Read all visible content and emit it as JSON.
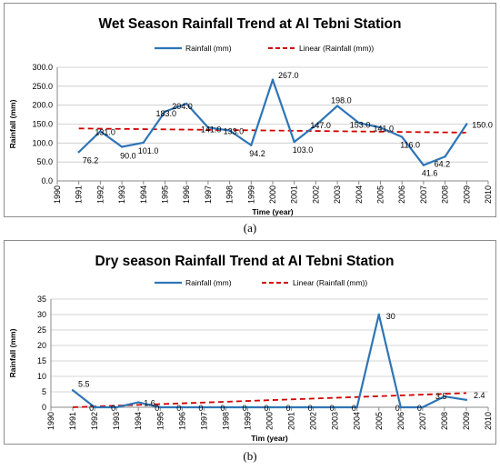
{
  "captions": [
    "(a)",
    "(b)"
  ],
  "chart_data": [
    {
      "type": "line",
      "title": "Wet Season Rainfall Trend at Al Tebni Station",
      "xlabel": "Time (year)",
      "ylabel": "Rainfall (mm)",
      "x_ticks": [
        "1990",
        "1991",
        "1992",
        "1993",
        "1994",
        "1995",
        "1996",
        "1997",
        "1998",
        "1999",
        "2000",
        "2001",
        "2002",
        "2003",
        "2004",
        "2005",
        "2006",
        "2007",
        "2008",
        "2009",
        "2010"
      ],
      "y_ticks": [
        "0.0",
        "50.0",
        "100.0",
        "150.0",
        "200.0",
        "250.0",
        "300.0"
      ],
      "xlim": [
        1990,
        2010
      ],
      "ylim": [
        0,
        300
      ],
      "grid": "horizontal",
      "legend_position": "top",
      "series": [
        {
          "name": "Rainfall (mm)",
          "color": "#2e75b6",
          "style": "solid",
          "x": [
            1991,
            1992,
            1993,
            1994,
            1995,
            1996,
            1997,
            1998,
            1999,
            2000,
            2001,
            2002,
            2003,
            2004,
            2005,
            2006,
            2007,
            2008,
            2009
          ],
          "values": [
            76.2,
            131.0,
            90.0,
            101.0,
            183.0,
            204.0,
            141.0,
            133.0,
            94.2,
            267.0,
            103.0,
            147.0,
            198.0,
            153.0,
            141.0,
            116.0,
            41.6,
            64.2,
            150.0
          ]
        },
        {
          "name": "Linear (Rainfall (mm))",
          "color": "#d00000",
          "style": "dashed",
          "x": [
            1991,
            2009
          ],
          "values": [
            138.5,
            127.5
          ]
        }
      ],
      "data_labels": [
        "76.2",
        "131.0",
        "90.0",
        "101.0",
        "183.0",
        "204.0",
        "141.0",
        "133.0",
        "94.2",
        "267.0",
        "103.0",
        "147.0",
        "198.0",
        "153.0",
        "141.0",
        "116.0",
        "41.6",
        "64.2",
        "150.0"
      ]
    },
    {
      "type": "line",
      "title": "Dry season Rainfall Trend at Al Tebni Station",
      "xlabel": "Tim (year)",
      "ylabel": "Rainfall (mm)",
      "x_ticks": [
        "1990",
        "1991",
        "1992",
        "1993",
        "1994",
        "1995",
        "1996",
        "1997",
        "1998",
        "1999",
        "2000",
        "2001",
        "2002",
        "2003",
        "2004",
        "2005",
        "2006",
        "2007",
        "2008",
        "2009",
        "2010"
      ],
      "y_ticks": [
        "0",
        "5",
        "10",
        "15",
        "20",
        "25",
        "30",
        "35"
      ],
      "xlim": [
        1990,
        2010
      ],
      "ylim": [
        0,
        35
      ],
      "grid": "horizontal",
      "legend_position": "top",
      "series": [
        {
          "name": "Rainfall (mm)",
          "color": "#2e75b6",
          "style": "solid",
          "x": [
            1991,
            1992,
            1993,
            1994,
            1995,
            1996,
            1997,
            1998,
            1999,
            2000,
            2001,
            2002,
            2003,
            2004,
            2005,
            2006,
            2007,
            2008,
            2009
          ],
          "values": [
            5.5,
            0,
            0,
            1.6,
            0,
            0,
            0,
            0,
            0,
            0,
            0,
            0,
            0,
            0,
            30,
            0,
            0,
            3.5,
            2.4
          ]
        },
        {
          "name": "Linear (Rainfall (mm))",
          "color": "#d00000",
          "style": "dashed",
          "x": [
            1991,
            2009
          ],
          "values": [
            0.0,
            4.6
          ]
        }
      ],
      "data_labels": [
        "5.5",
        "0",
        "0",
        "1.6",
        "0",
        "0",
        "0",
        "0",
        "0",
        "0",
        "0",
        "0",
        "0",
        "0",
        "30",
        "0",
        "0",
        "3.5",
        "2.4"
      ]
    }
  ]
}
